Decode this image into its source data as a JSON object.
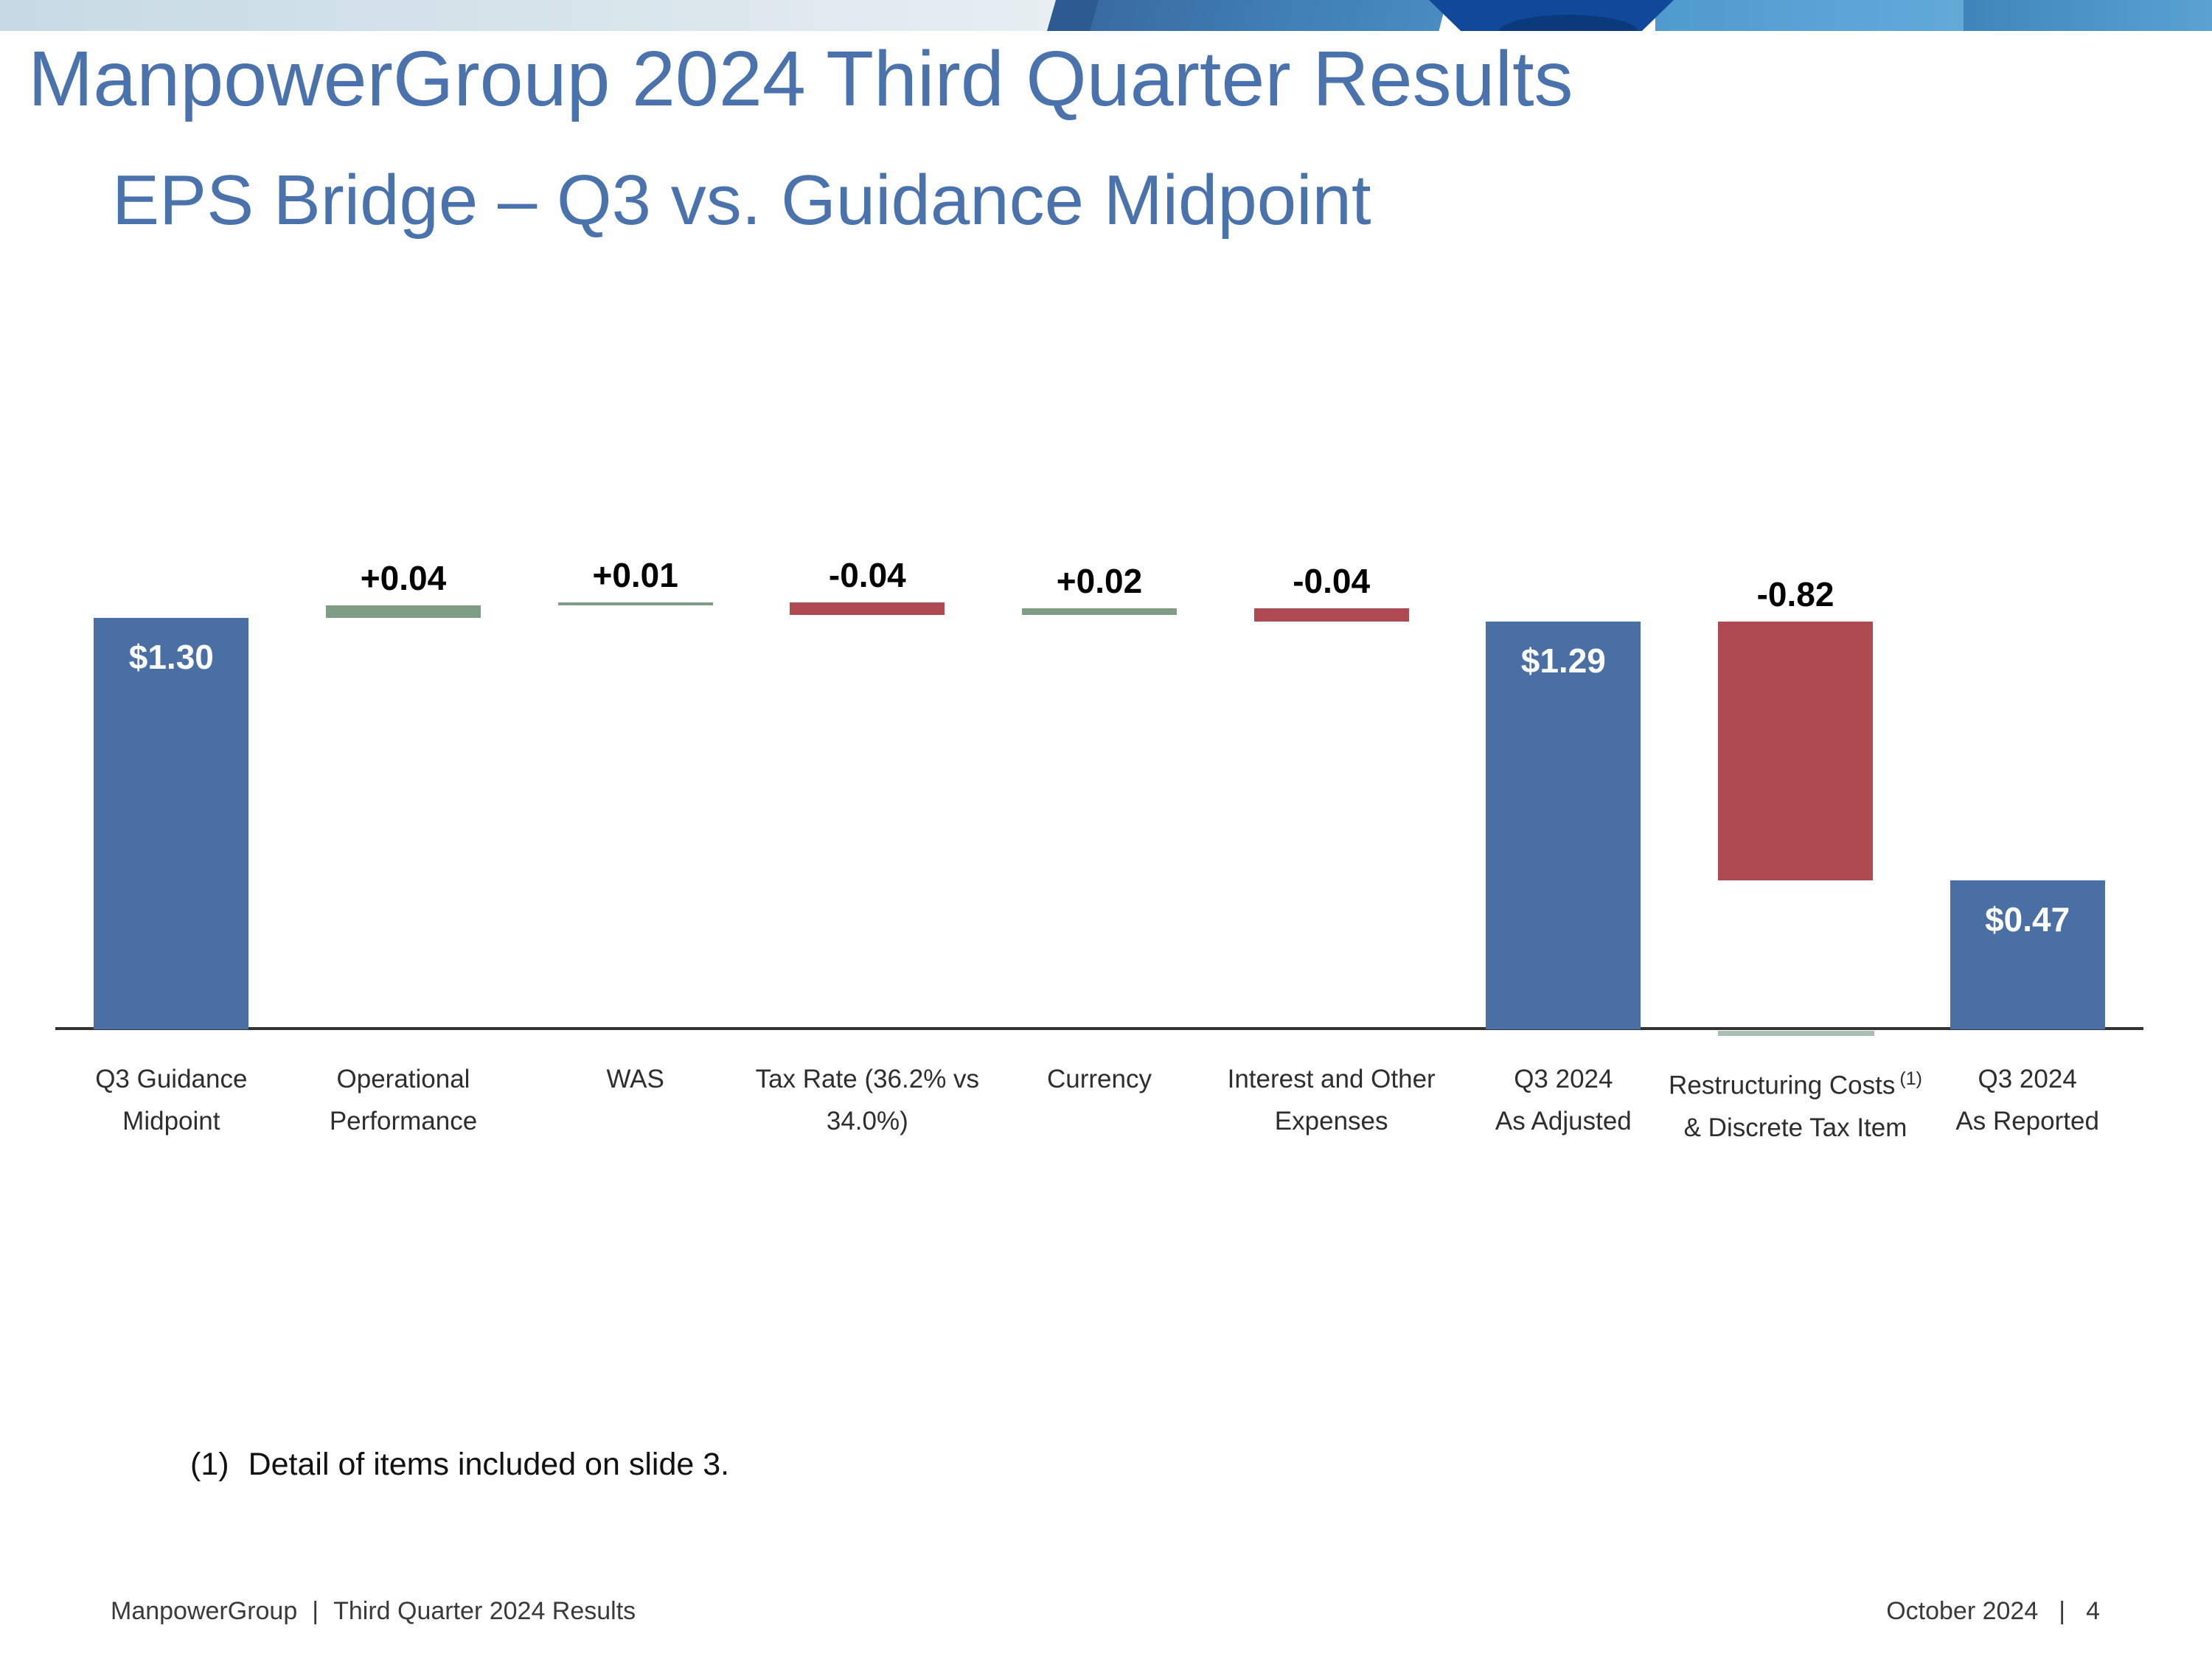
{
  "header": {
    "title": "ManpowerGroup 2024 Third Quarter Results",
    "subtitle": "EPS Bridge – Q3 vs. Guidance Midpoint"
  },
  "chart_data": {
    "type": "bar",
    "subtype": "waterfall",
    "title": "EPS Bridge – Q3 vs. Guidance Midpoint",
    "categories": [
      "Q3 Guidance Midpoint",
      "Operational Performance",
      "WAS",
      "Tax Rate (36.2% vs 34.0%)",
      "Currency",
      "Interest and Other Expenses",
      "Q3 2024 As Adjusted",
      "Restructuring Costs (1) & Discrete Tax Item",
      "Q3 2024 As Reported"
    ],
    "bars": [
      {
        "label_lines": [
          "Q3 Guidance",
          "Midpoint"
        ],
        "start": 0,
        "end": 1.3,
        "delta": null,
        "color": "blue",
        "value_label": "$1.30",
        "label_inside": true
      },
      {
        "label_lines": [
          "Operational",
          "Performance"
        ],
        "start": 1.3,
        "end": 1.34,
        "delta": 0.04,
        "color": "green",
        "value_label": "+0.04",
        "label_inside": false
      },
      {
        "label_lines": [
          "WAS"
        ],
        "start": 1.34,
        "end": 1.35,
        "delta": 0.01,
        "color": "green",
        "value_label": "+0.01",
        "label_inside": false
      },
      {
        "label_lines": [
          "Tax Rate (36.2% vs",
          "34.0%)"
        ],
        "start": 1.35,
        "end": 1.31,
        "delta": -0.04,
        "color": "red",
        "value_label": "-0.04",
        "label_inside": false
      },
      {
        "label_lines": [
          "Currency"
        ],
        "start": 1.31,
        "end": 1.33,
        "delta": 0.02,
        "color": "green",
        "value_label": "+0.02",
        "label_inside": false
      },
      {
        "label_lines": [
          "Interest and Other",
          "Expenses"
        ],
        "start": 1.33,
        "end": 1.29,
        "delta": -0.04,
        "color": "red",
        "value_label": "-0.04",
        "label_inside": false
      },
      {
        "label_lines": [
          "Q3 2024",
          "As Adjusted"
        ],
        "start": 0,
        "end": 1.29,
        "delta": null,
        "color": "blue",
        "value_label": "$1.29",
        "label_inside": true
      },
      {
        "label_lines": [
          "Restructuring Costs",
          "& Discrete Tax Item"
        ],
        "start": 1.29,
        "end": 0.47,
        "delta": -0.82,
        "color": "red",
        "value_label": "-0.82",
        "label_inside": false,
        "footnote_sup": "(1)"
      },
      {
        "label_lines": [
          "Q3 2024",
          "As Reported"
        ],
        "start": 0,
        "end": 0.47,
        "delta": null,
        "color": "blue",
        "value_label": "$0.47",
        "label_inside": true
      }
    ],
    "colors": {
      "blue": "#4a6fa5",
      "green": "#7e9d84",
      "red": "#b04a52"
    },
    "axis_color": "#333333",
    "ylim": [
      0,
      1.45
    ],
    "grid": false,
    "legend": false
  },
  "footnote": {
    "marker": "(1)",
    "text": "Detail of items included on slide 3."
  },
  "footer": {
    "company": "ManpowerGroup",
    "left_separator": "|",
    "left_text": "Third Quarter 2024 Results",
    "date": "October 2024",
    "right_separator": "|",
    "page_number": "4"
  },
  "accent_colors": {
    "title_blue": "#4a72ac",
    "bar_blue": "#4a6fa5",
    "bar_green": "#7e9d84",
    "bar_red": "#b04a52"
  }
}
